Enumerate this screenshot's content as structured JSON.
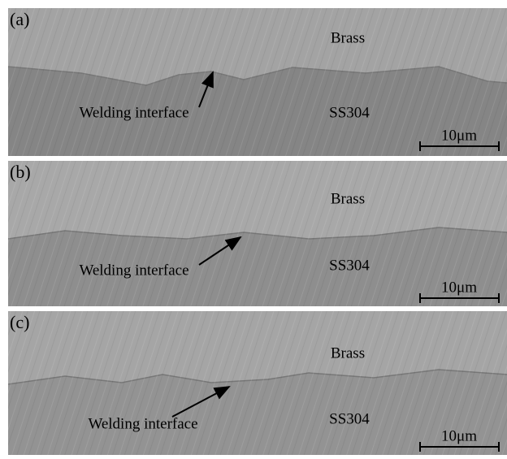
{
  "panels": [
    {
      "label": "(a)",
      "upper_material": "Brass",
      "lower_material": "SS304",
      "annotation": "Welding interface",
      "scale_bar": "10μm"
    },
    {
      "label": "(b)",
      "upper_material": "Brass",
      "lower_material": "SS304",
      "annotation": "Welding interface",
      "scale_bar": "10μm"
    },
    {
      "label": "(c)",
      "upper_material": "Brass",
      "lower_material": "SS304",
      "annotation": "Welding interface",
      "scale_bar": "10μm"
    }
  ]
}
